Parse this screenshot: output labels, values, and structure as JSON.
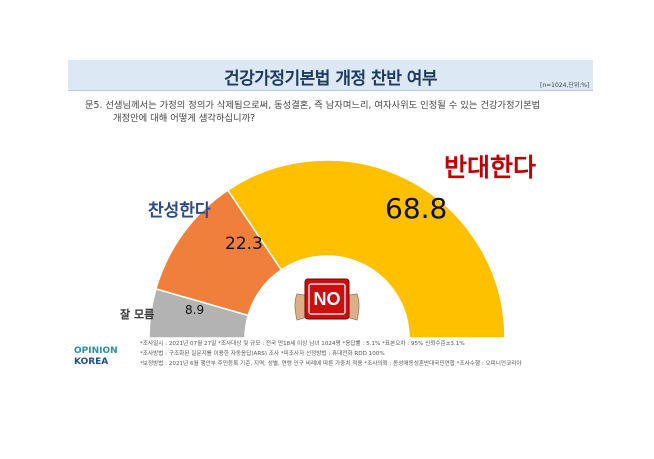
{
  "header": {
    "title": "건강가정기본법 개정 찬반 여부",
    "sample_note": "[n=1024,단위:%]"
  },
  "question": {
    "line1": "문5. 선생님께서는 가정의 정의가 삭제됨으로써, 동성결혼, 즉 남자며느리, 여자사위도 인정될 수 있는 건강가정기본법",
    "line2": "개정안에 대해 어떻게 생각하십니까?"
  },
  "badge": {
    "text": "NO",
    "icon": "no-sign-icon"
  },
  "notes": [
    "*조사일시 : 2021년 07월 27일   *조사대상 및 규모 : 전국 만18세 이상 남녀 1024명 *응답률 : 5.1%   *표본오차 : 95% 신뢰수준±3.1%",
    "*조사방법 : 구조화된 질문지를 이용한 자동응답(ARS) 조사  *피조사자 선정방법 : 휴대전화 RDD 100%",
    "*보정방법 : 2021년 6월 행안부 주민등록 기준, 지역, 성별, 연령 인구 비례에 따른 가중치 적용   *조사의뢰 : 동성애동성혼반대국민연합   *조사수행 : 오피니언코리아"
  ],
  "logo": {
    "line1": "OPINION",
    "line2": "KOREA"
  },
  "chart_data": {
    "type": "pie",
    "style": "half-donut",
    "title": "건강가정기본법 개정 찬반 여부",
    "unit": "%",
    "slices": [
      {
        "label": "잘 모름",
        "value": 8.9,
        "color": "#b3b3b3",
        "label_color": "#333333"
      },
      {
        "label": "찬성한다",
        "value": 22.3,
        "color": "#f07f3c",
        "label_color": "#2f4a8c"
      },
      {
        "label": "반대한다",
        "value": 68.8,
        "color": "#ffc000",
        "label_color": "#c00000"
      }
    ]
  }
}
